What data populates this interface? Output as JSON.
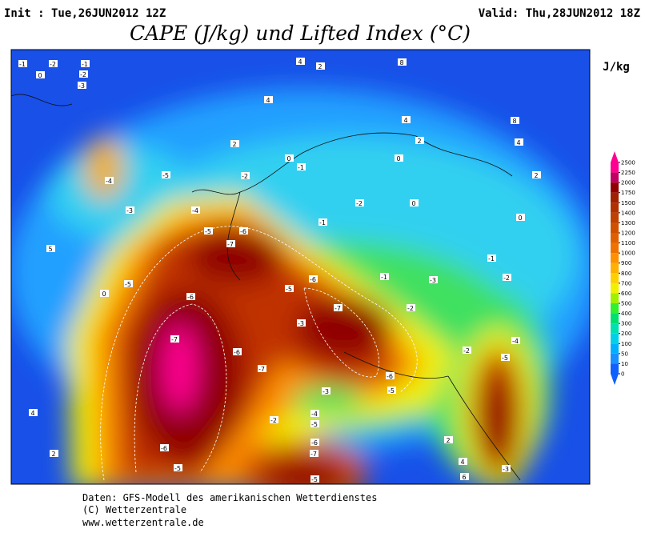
{
  "header": {
    "init": "Init : Tue,26JUN2012 12Z",
    "valid": "Valid: Thu,28JUN2012 18Z",
    "title": "CAPE (J/kg) und Lifted Index (°C)"
  },
  "colorbar": {
    "unit": "J/kg",
    "levels": [
      0,
      10,
      50,
      100,
      200,
      300,
      400,
      500,
      600,
      700,
      800,
      900,
      1000,
      1100,
      1200,
      1300,
      1400,
      1500,
      1750,
      2000,
      2250,
      2500
    ],
    "colors": [
      "#1060ff",
      "#1890ff",
      "#00b0ff",
      "#00d0e8",
      "#00e0b0",
      "#00e070",
      "#30f030",
      "#a0f000",
      "#f0f000",
      "#ffd000",
      "#ffb000",
      "#ff9000",
      "#f07000",
      "#e06000",
      "#d05000",
      "#c04000",
      "#b03000",
      "#a02000",
      "#900000",
      "#c00060",
      "#ff0090"
    ]
  },
  "contour_labels": [
    "-1",
    "-2",
    "-1",
    "0",
    "-2",
    "-3",
    "4",
    "2",
    "8",
    "4",
    "4",
    "8",
    "4",
    "2",
    "2",
    "0",
    "-1",
    "0",
    "2",
    "-5",
    "-4",
    "-2",
    "-2",
    "0",
    "0",
    "-3",
    "-4",
    "-1",
    "5",
    "-5",
    "-6",
    "-7",
    "-1",
    "-5",
    "-6",
    "-5",
    "-6",
    "-7",
    "-3",
    "-2",
    "-7",
    "-6",
    "-7",
    "-3",
    "-6",
    "-2",
    "-5",
    "-4",
    "-2",
    "-4",
    "-5",
    "-6",
    "-5",
    "-6",
    "-7",
    "-5",
    "-3",
    "4",
    "2",
    "4",
    "6",
    "2",
    "0",
    "-2",
    "-1",
    "-3",
    "-5"
  ],
  "footer": [
    "Daten: GFS-Modell des amerikanischen Wetterdienstes",
    "(C) Wetterzentrale",
    "www.wetterzentrale.de"
  ]
}
